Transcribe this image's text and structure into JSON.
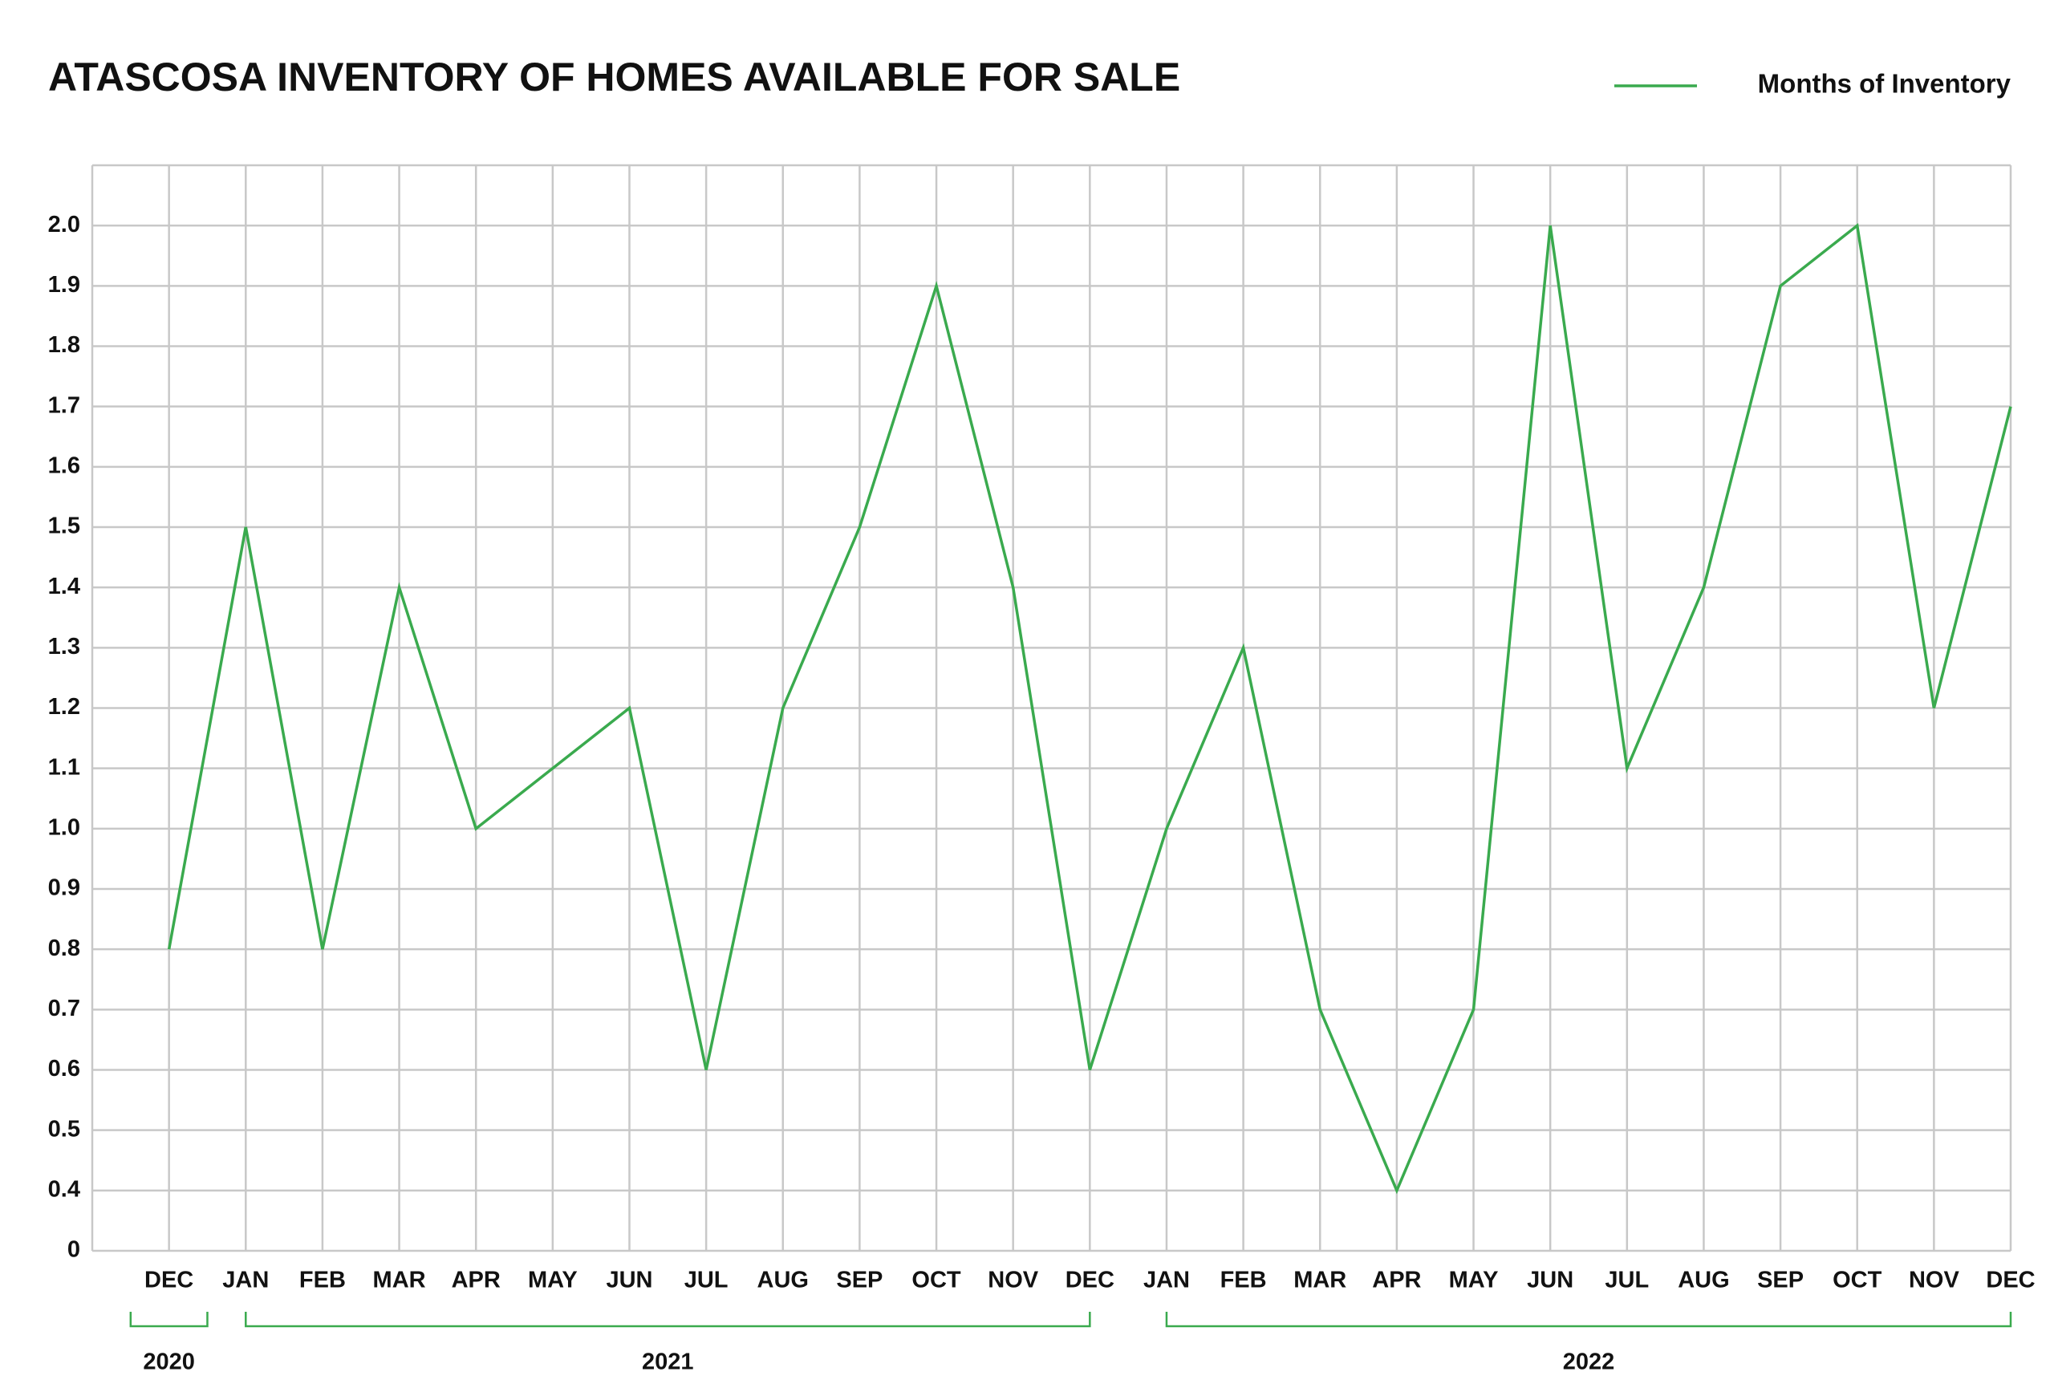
{
  "chart_data": {
    "type": "line",
    "title": "ATASCOSA INVENTORY OF HOMES AVAILABLE FOR SALE",
    "categories": [
      "DEC",
      "JAN",
      "FEB",
      "MAR",
      "APR",
      "MAY",
      "JUN",
      "JUL",
      "AUG",
      "SEP",
      "OCT",
      "NOV",
      "DEC",
      "JAN",
      "FEB",
      "MAR",
      "APR",
      "MAY",
      "JUN",
      "JUL",
      "AUG",
      "SEP",
      "OCT",
      "NOV",
      "DEC"
    ],
    "category_groups": [
      {
        "label": "2020",
        "start": 0,
        "end": 0
      },
      {
        "label": "2021",
        "start": 1,
        "end": 12
      },
      {
        "label": "2022",
        "start": 13,
        "end": 24
      }
    ],
    "series": [
      {
        "name": "Months of Inventory",
        "color": "#3aaa4e",
        "values": [
          0.8,
          1.5,
          0.8,
          1.4,
          1.0,
          1.1,
          1.2,
          0.6,
          1.2,
          1.5,
          1.9,
          1.4,
          0.6,
          1.0,
          1.3,
          0.7,
          0.4,
          0.7,
          2.0,
          1.1,
          1.4,
          1.9,
          2.0,
          1.2,
          1.7
        ]
      }
    ],
    "ylim": [
      0,
      2.1
    ],
    "yticks": [
      0,
      0.4,
      {
        "value": 0.5,
        "label": "0.5"
      },
      0.6,
      0.7,
      0.8,
      0.9,
      {
        "value": 1.0,
        "label": "1.0"
      },
      1.1,
      1.2,
      1.3,
      1.4,
      1.5,
      1.6,
      1.7,
      1.8,
      1.9,
      {
        "value": 2.0,
        "label": "2.0"
      }
    ],
    "axis_break": true,
    "grid": true,
    "legend": "top-right"
  }
}
